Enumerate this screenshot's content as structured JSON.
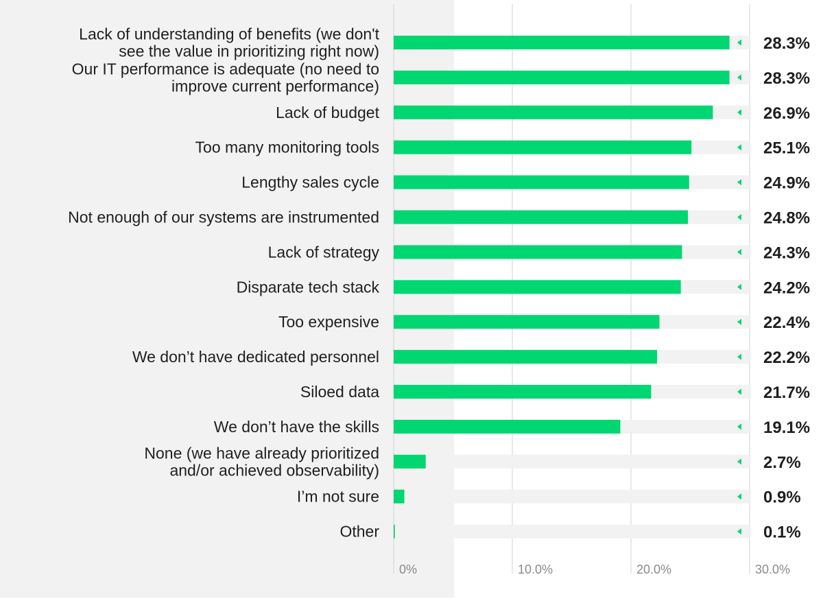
{
  "chart_data": {
    "type": "bar",
    "orientation": "horizontal",
    "categories": [
      [
        "Lack of understanding of benefits (we don't",
        "see the value in prioritizing right now)"
      ],
      [
        "Our IT performance is adequate (no need to",
        "improve current performance)"
      ],
      [
        "Lack of budget"
      ],
      [
        "Too many monitoring tools"
      ],
      [
        "Lengthy sales cycle"
      ],
      [
        "Not enough of our systems are instrumented"
      ],
      [
        "Lack of strategy"
      ],
      [
        "Disparate tech stack"
      ],
      [
        "Too expensive"
      ],
      [
        "We don’t have dedicated personnel"
      ],
      [
        "Siloed data"
      ],
      [
        "We don’t have the skills"
      ],
      [
        "None (we have already prioritized",
        "and/or achieved observability)"
      ],
      [
        "I’m not sure"
      ],
      [
        "Other"
      ]
    ],
    "values": [
      28.3,
      28.3,
      26.9,
      25.1,
      24.9,
      24.8,
      24.3,
      24.2,
      22.4,
      22.2,
      21.7,
      19.1,
      2.7,
      0.9,
      0.1
    ],
    "value_labels": [
      "28.3%",
      "28.3%",
      "26.9%",
      "25.1%",
      "24.9%",
      "24.8%",
      "24.3%",
      "24.2%",
      "22.4%",
      "22.2%",
      "21.7%",
      "19.1%",
      "2.7%",
      "0.9%",
      "0.1%"
    ],
    "ticks": [
      0,
      10,
      20,
      30
    ],
    "tick_labels": [
      "0%",
      "10.0%",
      "20.0%",
      "30.0%"
    ],
    "xlim": [
      0,
      30
    ],
    "grid": true,
    "colors": {
      "bar": "#00d672",
      "track": "#f1f2f1",
      "marker": "#00d672",
      "left_panel": "#f1f2f1",
      "grid": "#d2d2d2"
    }
  }
}
